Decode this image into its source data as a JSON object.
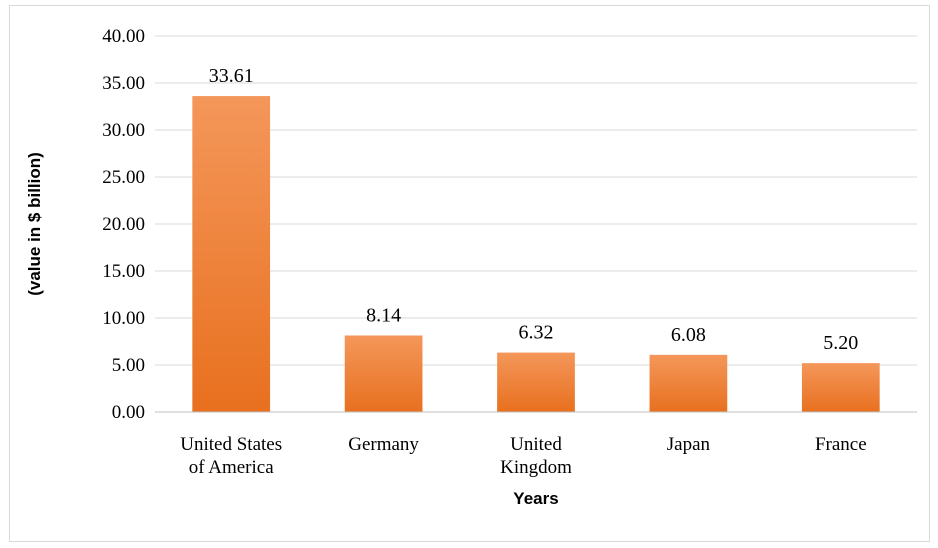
{
  "chart_data": {
    "type": "bar",
    "title": "",
    "xlabel": "Years",
    "ylabel": "(value in $ billion)",
    "categories": [
      [
        "United States",
        "of America"
      ],
      [
        "Germany"
      ],
      [
        "United",
        "Kingdom"
      ],
      [
        "Japan"
      ],
      [
        "France"
      ]
    ],
    "values": [
      33.61,
      8.14,
      6.32,
      6.08,
      5.2
    ],
    "value_labels": [
      "33.61",
      "8.14",
      "6.32",
      "6.08",
      "5.20"
    ],
    "ylim": [
      0,
      40
    ],
    "y_ticks": [
      "0.00",
      "5.00",
      "10.00",
      "15.00",
      "20.00",
      "25.00",
      "30.00",
      "35.00",
      "40.00"
    ],
    "grid": true,
    "legend": "none",
    "colors": {
      "bar_top": "#f4975a",
      "bar_bottom": "#e8701f",
      "grid": "#d9d9d9",
      "axis": "#bfbfbf"
    }
  }
}
